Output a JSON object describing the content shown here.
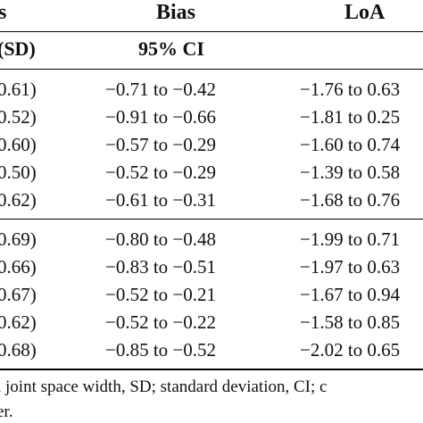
{
  "header": {
    "col1": "s",
    "bias": "Bias",
    "loa": "LoA"
  },
  "subheader": {
    "col1": "(SD)",
    "ci": "95% CI"
  },
  "group1": [
    {
      "sd": "0.61)",
      "ci": "−0.71 to −0.42",
      "loa": "−1.76 to 0.63"
    },
    {
      "sd": "0.52)",
      "ci": "−0.91 to −0.66",
      "loa": "−1.81 to 0.25"
    },
    {
      "sd": "0.60)",
      "ci": "−0.57 to −0.29",
      "loa": "−1.60 to 0.74"
    },
    {
      "sd": "0.50)",
      "ci": "−0.52 to −0.29",
      "loa": "−1.39 to 0.58"
    },
    {
      "sd": "0.62)",
      "ci": "−0.61 to −0.31",
      "loa": "−1.68 to 0.76"
    }
  ],
  "group2": [
    {
      "sd": "0.69)",
      "ci": "−0.80 to −0.48",
      "loa": "−1.99 to 0.71"
    },
    {
      "sd": "0.66)",
      "ci": "−0.83 to −0.51",
      "loa": "−1.97 to 0.63"
    },
    {
      "sd": "0.67)",
      "ci": "−0.52 to −0.21",
      "loa": "−1.67 to 0.94"
    },
    {
      "sd": "0.62)",
      "ci": "−0.52 to −0.22",
      "loa": "−1.58 to 0.85"
    },
    {
      "sd": "0.68)",
      "ci": "−0.85 to −0.52",
      "loa": "−2.02 to 0.65"
    }
  ],
  "footnote": {
    "line1": "l joint space width, SD; standard deviation, CI; c",
    "line2": "er."
  }
}
